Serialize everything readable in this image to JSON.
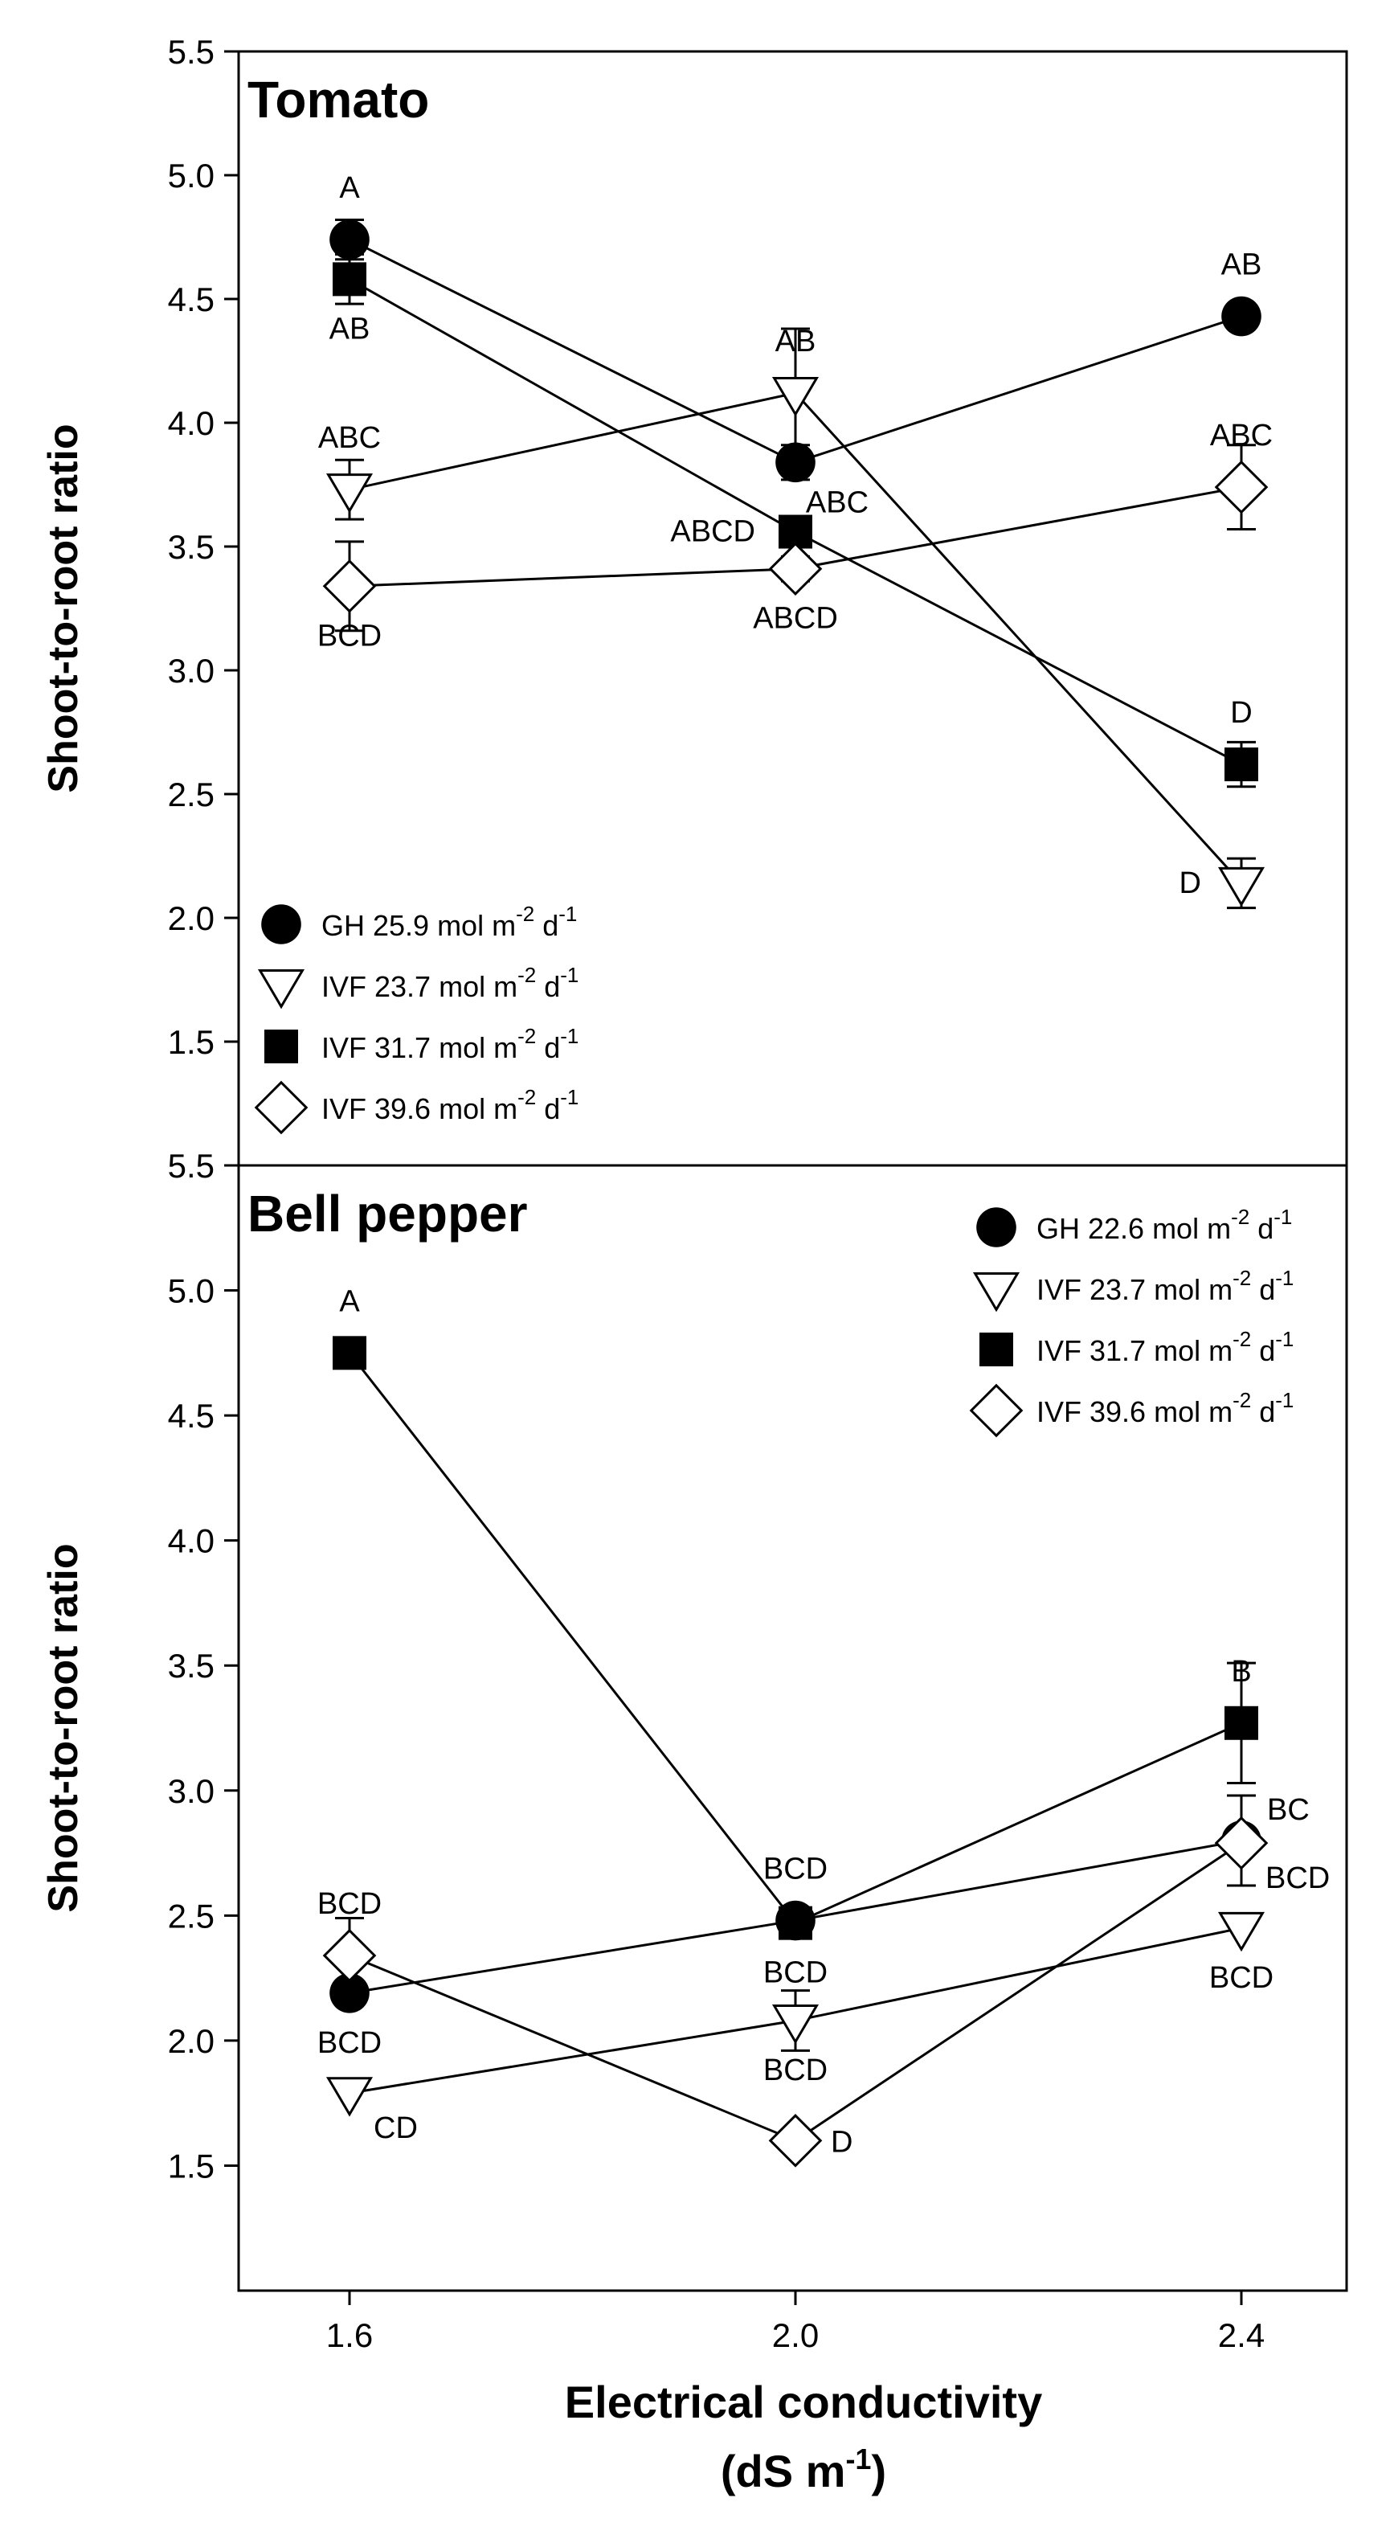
{
  "chart_data": [
    {
      "type": "line",
      "title": "Tomato",
      "xlabel": "",
      "ylabel": "Shoot-to-root ratio",
      "x": [
        1.6,
        2.0,
        2.4
      ],
      "ylim": [
        1.0,
        5.5
      ],
      "yticks": [
        "5.5",
        "5.0",
        "4.5",
        "4.0",
        "3.5",
        "3.0",
        "2.5",
        "2.0",
        "1.5"
      ],
      "ytick_values": [
        5.5,
        5.0,
        4.5,
        4.0,
        3.5,
        3.0,
        2.5,
        2.0,
        1.5
      ],
      "legend_position": "bottom-left",
      "series": [
        {
          "name": "GH 25.9 mol m-2 d-1",
          "legend": {
            "main": "GH 25.9 mol m",
            "exp": "-2",
            "tail": " d",
            "exp2": "-1"
          },
          "marker": "circle",
          "values": [
            4.74,
            3.84,
            4.43
          ],
          "errors": [
            0.08,
            0.07,
            0.0
          ],
          "labels": [
            "A",
            "ABC",
            "AB"
          ],
          "label_pos": [
            "above",
            "below-right",
            "above"
          ]
        },
        {
          "name": "IVF 23.7 mol m-2 d-1",
          "legend": {
            "main": "IVF 23.7 mol m",
            "exp": "-2",
            "tail": " d",
            "exp2": "-1"
          },
          "marker": "triangle-down",
          "values": [
            3.73,
            4.12,
            2.14
          ],
          "errors": [
            0.12,
            0.26,
            0.1
          ],
          "labels": [
            "ABC",
            "AB",
            "D"
          ],
          "label_pos": [
            "above",
            "above",
            "left"
          ]
        },
        {
          "name": "IVF 31.7 mol m-2 d-1",
          "legend": {
            "main": "IVF 31.7 mol m",
            "exp": "-2",
            "tail": " d",
            "exp2": "-1"
          },
          "marker": "square",
          "values": [
            4.58,
            3.56,
            2.62
          ],
          "errors": [
            0.1,
            0.04,
            0.09
          ],
          "labels": [
            "AB",
            "ABCD",
            "D"
          ],
          "label_pos": [
            "below",
            "left",
            "above"
          ]
        },
        {
          "name": "IVF 39.6 mol m-2 d-1",
          "legend": {
            "main": "IVF 39.6 mol m",
            "exp": "-2",
            "tail": " d",
            "exp2": "-1"
          },
          "marker": "diamond",
          "values": [
            3.34,
            3.41,
            3.74
          ],
          "errors": [
            0.18,
            0.05,
            0.17
          ],
          "labels": [
            "BCD",
            "ABCD",
            "ABC"
          ],
          "label_pos": [
            "below",
            "below",
            "above"
          ]
        }
      ]
    },
    {
      "type": "line",
      "title": "Bell pepper",
      "xlabel": "Electrical conductivity",
      "xlabel_units": {
        "main": "(dS m",
        "exp": "-1",
        "tail": ")"
      },
      "ylabel": "Shoot-to-root ratio",
      "x": [
        1.6,
        2.0,
        2.4
      ],
      "xticks": [
        "1.6",
        "2.0",
        "2.4"
      ],
      "ylim": [
        1.0,
        5.5
      ],
      "yticks": [
        "5.5",
        "5.0",
        "4.5",
        "4.0",
        "3.5",
        "3.0",
        "2.5",
        "2.0",
        "1.5"
      ],
      "ytick_values": [
        5.5,
        5.0,
        4.5,
        4.0,
        3.5,
        3.0,
        2.5,
        2.0,
        1.5
      ],
      "legend_position": "top-right",
      "series": [
        {
          "name": "GH 22.6 mol m-2 d-1",
          "legend": {
            "main": "GH 22.6 mol m",
            "exp": "-2",
            "tail": " d",
            "exp2": "-1"
          },
          "marker": "circle",
          "values": [
            2.19,
            2.48,
            2.8
          ],
          "errors": [
            0.0,
            0.04,
            0.18
          ],
          "labels": [
            "BCD",
            "BCD",
            "BC"
          ],
          "label_pos": [
            "below",
            "above",
            "right-up"
          ]
        },
        {
          "name": "IVF 23.7 mol m-2 d-1",
          "legend": {
            "main": "IVF 23.7 mol m",
            "exp": "-2",
            "tail": " d",
            "exp2": "-1"
          },
          "marker": "triangle-down",
          "values": [
            1.79,
            2.08,
            2.45
          ],
          "errors": [
            0.0,
            0.12,
            0.0
          ],
          "labels": [
            "CD",
            "BCD",
            "BCD"
          ],
          "label_pos": [
            "right-down",
            "below",
            "below"
          ]
        },
        {
          "name": "IVF 31.7 mol m-2 d-1",
          "legend": {
            "main": "IVF 31.7 mol m",
            "exp": "-2",
            "tail": " d",
            "exp2": "-1"
          },
          "marker": "square",
          "values": [
            4.75,
            2.47,
            3.27
          ],
          "errors": [
            0.06,
            0.05,
            0.24
          ],
          "labels": [
            "A",
            "BCD",
            "B"
          ],
          "label_pos": [
            "above",
            "below",
            "above"
          ]
        },
        {
          "name": "IVF 39.6 mol m-2 d-1",
          "legend": {
            "main": "IVF 39.6 mol m",
            "exp": "-2",
            "tail": " d",
            "exp2": "-1"
          },
          "marker": "diamond",
          "values": [
            2.34,
            1.6,
            2.79
          ],
          "errors": [
            0.15,
            0.0,
            0.0
          ],
          "labels": [
            "BCD",
            "D",
            "BCD"
          ],
          "label_pos": [
            "above",
            "right",
            "right-down"
          ]
        }
      ]
    }
  ]
}
